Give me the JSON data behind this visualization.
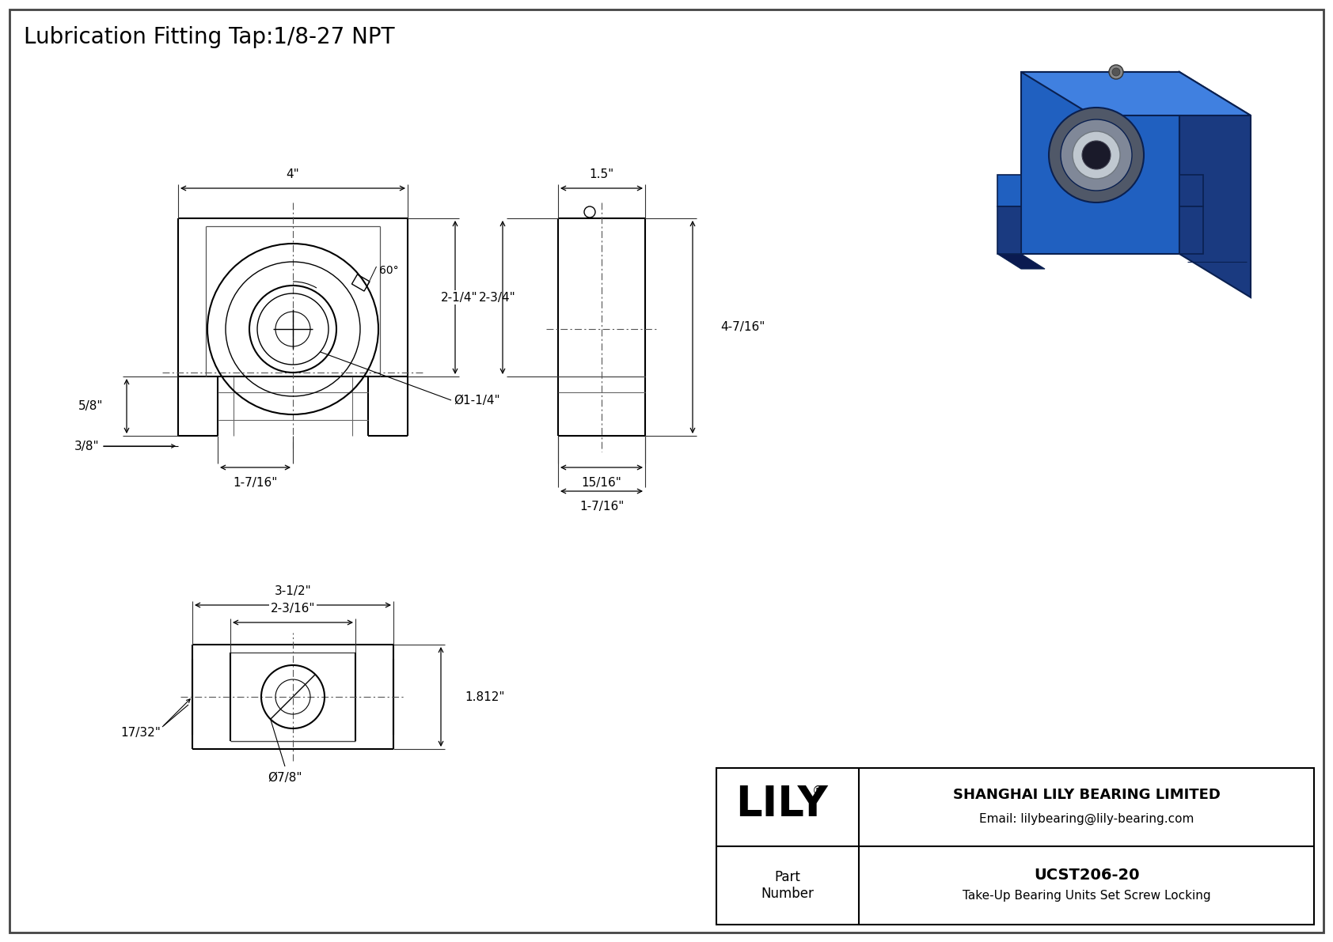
{
  "title": "Lubrication Fitting Tap:1/8-27 NPT",
  "bg_color": "#ffffff",
  "line_color": "#000000",
  "title_fontsize": 20,
  "dim_fontsize": 11,
  "company_name": "SHANGHAI LILY BEARING LIMITED",
  "company_email": "Email: lilybearing@lily-bearing.com",
  "part_number": "UCST206-20",
  "part_desc": "Take-Up Bearing Units Set Screw Locking",
  "dim_4inch": "4\"",
  "dim_1_5inch": "1.5\"",
  "dim_5_8inch": "5/8\"",
  "dim_2_3_4inch": "2-3/4\"",
  "dim_3_8inch": "3/8\"",
  "dim_1_7_16inch": "1-7/16\"",
  "dim_dia_1_1_4inch": "Ø1-1/4\"",
  "dim_60deg": "60°",
  "dim_2_1_4inch": "2-1/4\"",
  "dim_4_7_16inch": "4-7/16\"",
  "dim_15_16inch": "15/16\"",
  "dim_1_7_16_side": "1-7/16\"",
  "dim_3_1_2inch": "3-1/2\"",
  "dim_2_3_16inch": "2-3/16\"",
  "dim_1_812inch": "1.812\"",
  "dim_17_32inch": "17/32\"",
  "dim_dia_7_8inch": "Ø7/8\"",
  "iso_blue": "#2060C0",
  "iso_dark": "#1A3A80",
  "iso_light": "#4080E0",
  "iso_metal": "#C0C8D0",
  "iso_dark_metal": "#707880"
}
